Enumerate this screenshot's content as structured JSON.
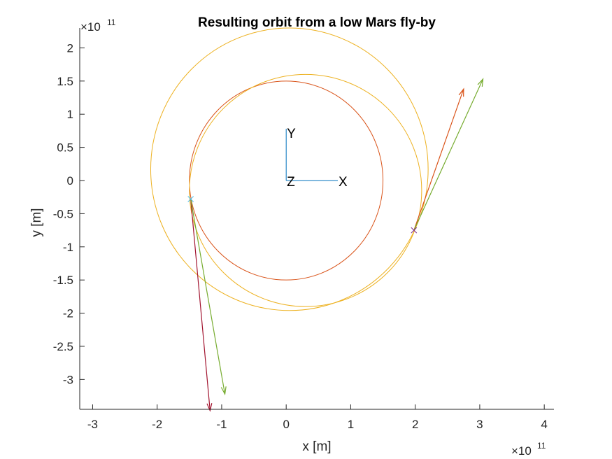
{
  "chart_data": {
    "type": "line",
    "title": "Resulting orbit from a low Mars fly-by",
    "xlabel": "x [m]",
    "ylabel": "y [m]",
    "xlim": [
      -3.2,
      4.15
    ],
    "ylim": [
      -3.45,
      2.3
    ],
    "x_exponent_base": "×10",
    "x_exponent_power": "11",
    "y_exponent_base": "×10",
    "y_exponent_power": "11",
    "x_ticks": [
      -3,
      -2,
      -1,
      0,
      1,
      2,
      3,
      4
    ],
    "x_tick_labels": [
      "-3",
      "-2",
      "-1",
      "0",
      "1",
      "2",
      "3",
      "4"
    ],
    "y_ticks": [
      -3,
      -2.5,
      -2,
      -1.5,
      -1,
      -0.5,
      0,
      0.5,
      1,
      1.5,
      2
    ],
    "y_tick_labels": [
      "-3",
      "-2.5",
      "-2",
      "-1.5",
      "-1",
      "-0.5",
      "0",
      "0.5",
      "1",
      "1.5",
      "2"
    ],
    "grid": false,
    "legend": "none",
    "orbits": [
      {
        "kind": "circle",
        "cx": 0,
        "cy": 0,
        "r": 1.5,
        "color": "#D95319"
      },
      {
        "kind": "ellipse",
        "cx": 0.3,
        "cy": -0.15,
        "rx": 1.8,
        "ry": 1.75,
        "color": "#EDB120"
      },
      {
        "kind": "ellipse",
        "cx": 0.05,
        "cy": 0.17,
        "rx": 2.15,
        "ry": 2.13,
        "color": "#EDB120"
      }
    ],
    "vectors": [
      {
        "from": [
          1.98,
          -0.75
        ],
        "to": [
          2.75,
          1.38
        ],
        "color": "#D95319"
      },
      {
        "from": [
          1.98,
          -0.75
        ],
        "to": [
          3.05,
          1.53
        ],
        "color": "#77AC30"
      },
      {
        "from": [
          -1.48,
          -0.28
        ],
        "to": [
          -1.18,
          -3.47
        ],
        "color": "#A2142F"
      },
      {
        "from": [
          -1.48,
          -0.28
        ],
        "to": [
          -0.95,
          -3.22
        ],
        "color": "#77AC30"
      }
    ],
    "markers": [
      {
        "x": -1.48,
        "y": -0.28,
        "symbol": "x",
        "color": "#4DBEEE"
      },
      {
        "x": 1.98,
        "y": -0.75,
        "symbol": "x",
        "color": "#7E2F8E"
      }
    ],
    "triad": {
      "origin": [
        0,
        0
      ],
      "x_end": [
        0.8,
        0
      ],
      "y_end": [
        0,
        0.78
      ],
      "color": "#0072BD",
      "labels": {
        "x": "X",
        "y": "Y",
        "z": "Z"
      }
    }
  }
}
